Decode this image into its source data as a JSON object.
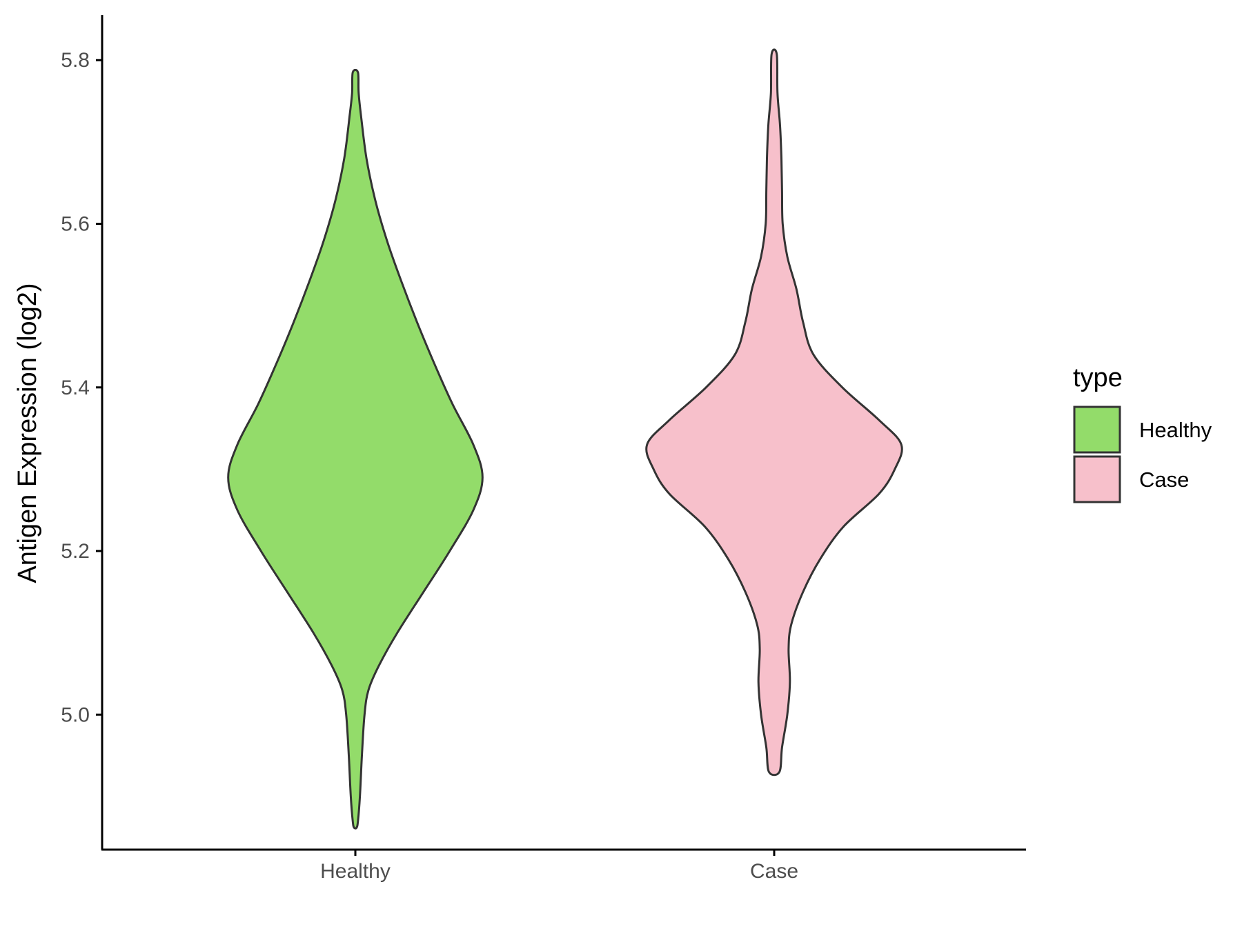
{
  "chart_data": {
    "type": "violin",
    "title": "",
    "xlabel": "",
    "ylabel": "Antigen Expression (log2)",
    "categories": [
      "Healthy",
      "Case"
    ],
    "ylim": [
      4.835,
      5.855
    ],
    "yticks": [
      5.0,
      5.2,
      5.4,
      5.6,
      5.8
    ],
    "ytick_labels": [
      "5.0",
      "5.2",
      "5.4",
      "5.6",
      "5.8"
    ],
    "grid": false,
    "legend": {
      "title": "type",
      "placement": "right",
      "entries": [
        {
          "label": "Healthy",
          "color": "#93dc6a"
        },
        {
          "label": "Case",
          "color": "#f7c0cb"
        }
      ]
    },
    "series": [
      {
        "category": "Healthy",
        "color": "#93dc6a",
        "min": 4.862,
        "max": 5.785,
        "density_profile": [
          [
            4.862,
            0.01
          ],
          [
            4.87,
            0.02
          ],
          [
            4.9,
            0.035
          ],
          [
            4.95,
            0.05
          ],
          [
            5.0,
            0.07
          ],
          [
            5.03,
            0.1
          ],
          [
            5.06,
            0.18
          ],
          [
            5.1,
            0.32
          ],
          [
            5.15,
            0.52
          ],
          [
            5.2,
            0.72
          ],
          [
            5.25,
            0.9
          ],
          [
            5.29,
            0.97
          ],
          [
            5.33,
            0.9
          ],
          [
            5.38,
            0.74
          ],
          [
            5.43,
            0.6
          ],
          [
            5.48,
            0.47
          ],
          [
            5.53,
            0.35
          ],
          [
            5.58,
            0.24
          ],
          [
            5.63,
            0.15
          ],
          [
            5.68,
            0.085
          ],
          [
            5.73,
            0.045
          ],
          [
            5.76,
            0.025
          ],
          [
            5.785,
            0.02
          ]
        ]
      },
      {
        "category": "Case",
        "color": "#f7c0cb",
        "min": 4.93,
        "max": 5.807,
        "density_profile": [
          [
            4.93,
            0.04
          ],
          [
            4.96,
            0.06
          ],
          [
            5.0,
            0.1
          ],
          [
            5.04,
            0.12
          ],
          [
            5.08,
            0.11
          ],
          [
            5.11,
            0.13
          ],
          [
            5.15,
            0.22
          ],
          [
            5.19,
            0.35
          ],
          [
            5.23,
            0.53
          ],
          [
            5.27,
            0.8
          ],
          [
            5.3,
            0.92
          ],
          [
            5.33,
            0.97
          ],
          [
            5.36,
            0.8
          ],
          [
            5.4,
            0.52
          ],
          [
            5.44,
            0.3
          ],
          [
            5.48,
            0.22
          ],
          [
            5.52,
            0.17
          ],
          [
            5.56,
            0.1
          ],
          [
            5.6,
            0.065
          ],
          [
            5.64,
            0.06
          ],
          [
            5.68,
            0.055
          ],
          [
            5.72,
            0.045
          ],
          [
            5.76,
            0.025
          ],
          [
            5.807,
            0.02
          ]
        ]
      }
    ]
  }
}
